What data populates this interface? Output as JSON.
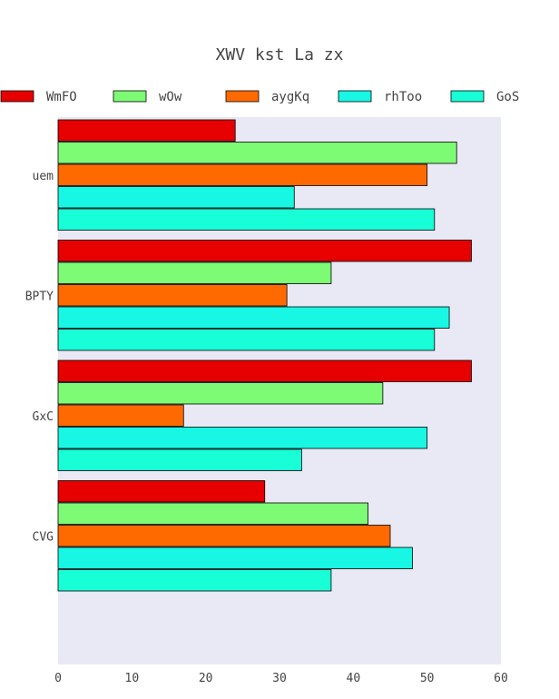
{
  "chart_data": {
    "type": "bar",
    "orientation": "horizontal",
    "title": "XWV kst La zx",
    "xlabel": "",
    "ylabel": "",
    "xlim": [
      0,
      60
    ],
    "x_ticks": [
      0,
      10,
      20,
      30,
      40,
      50,
      60
    ],
    "grid": false,
    "legend_position": "top",
    "plot_background": "#e9e9f5",
    "categories": [
      "uem",
      "BPTY",
      "GxC",
      "CVG"
    ],
    "series": [
      {
        "name": "WmFO",
        "color": "#e60000",
        "values": [
          24,
          56,
          56,
          28
        ]
      },
      {
        "name": "wOw",
        "color": "#7dfb75",
        "values": [
          54,
          37,
          44,
          42
        ]
      },
      {
        "name": "aygKq",
        "color": "#ff6a00",
        "values": [
          50,
          31,
          17,
          45
        ]
      },
      {
        "name": "rhToo",
        "color": "#18f7e3",
        "values": [
          32,
          53,
          50,
          48
        ]
      },
      {
        "name": "GoS",
        "color": "#18ffd7",
        "values": [
          51,
          51,
          33,
          37
        ]
      }
    ]
  }
}
